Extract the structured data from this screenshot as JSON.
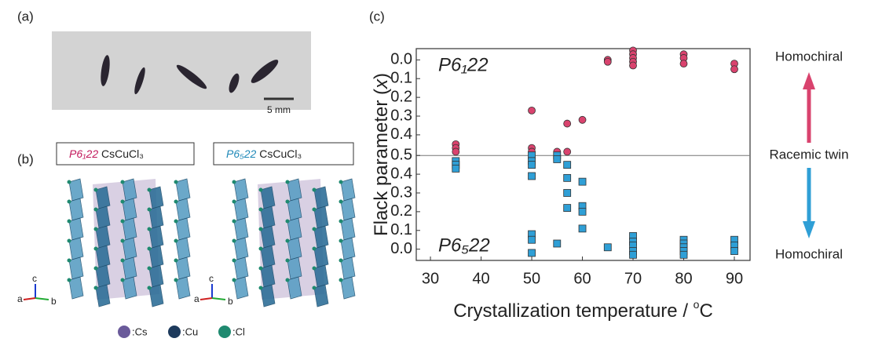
{
  "figure": {
    "panel_labels": [
      "(a)",
      "(b)",
      "(c)"
    ],
    "scale_bar": "5 mm",
    "structures": [
      {
        "group": "P6₁22",
        "formula": "CsCuCl₃"
      },
      {
        "group": "P6₅22",
        "formula": "CsCuCl₃"
      }
    ],
    "axis_names": [
      "a",
      "b",
      "c"
    ],
    "atom_legend": [
      ":Cs",
      ":Cu",
      ":Cl"
    ]
  },
  "chart_data": {
    "type": "scatter",
    "ylabel": [
      "Flack parameter (",
      "x",
      ")"
    ],
    "xlabel": [
      "Crystallization temperature / ",
      "o",
      "C"
    ],
    "xlim": [
      27.2,
      93.1
    ],
    "xticks": [
      30,
      40,
      50,
      60,
      70,
      80,
      90
    ],
    "ylim": [
      -0.06,
      1.07
    ],
    "yticks": [
      {
        "value": 0,
        "label": "0.0"
      },
      0.1,
      0.2,
      0.3,
      0.4,
      0.5
    ],
    "y2lim": [
      1.07,
      -0.06
    ],
    "y2ticks": [
      {
        "value": 0,
        "label": "0.0"
      },
      0.1,
      0.2,
      0.3,
      0.4
    ],
    "reference_line": 0.5,
    "side_labels": [
      "Homochiral",
      "Racemic twin",
      "Homochiral"
    ],
    "series": [
      {
        "name": "P6₁22",
        "color": "#d9436e",
        "marker": "circle",
        "axis": "y2",
        "x": [
          35,
          35,
          35,
          50,
          50,
          50,
          55,
          57,
          57,
          60,
          65,
          65,
          70,
          70,
          70,
          70,
          70,
          80,
          80,
          80,
          90,
          90
        ],
        "values": [
          0.45,
          0.47,
          0.49,
          0.27,
          0.47,
          0.49,
          0.49,
          0.34,
          0.49,
          0.32,
          0.0,
          0.01,
          -0.05,
          -0.03,
          -0.01,
          0.01,
          0.03,
          -0.03,
          -0.01,
          0.02,
          0.02,
          0.05
        ]
      },
      {
        "name": "P6₅22",
        "color": "#2f9fd6",
        "marker": "square",
        "x": [
          35,
          35,
          35,
          50,
          50,
          50,
          50,
          50,
          50,
          50,
          55,
          55,
          55,
          57,
          57,
          57,
          57,
          60,
          60,
          60,
          60,
          65,
          70,
          70,
          70,
          70,
          70,
          80,
          80,
          80,
          80,
          80,
          90,
          90,
          90
        ],
        "values": [
          0.47,
          0.45,
          0.43,
          0.5,
          0.47,
          0.45,
          0.39,
          0.08,
          0.05,
          -0.02,
          0.5,
          0.48,
          0.03,
          0.45,
          0.38,
          0.3,
          0.22,
          0.36,
          0.23,
          0.2,
          0.11,
          0.01,
          0.07,
          0.04,
          0.02,
          -0.01,
          -0.03,
          0.05,
          0.03,
          0.01,
          -0.01,
          -0.03,
          0.05,
          0.02,
          -0.01
        ]
      }
    ]
  }
}
